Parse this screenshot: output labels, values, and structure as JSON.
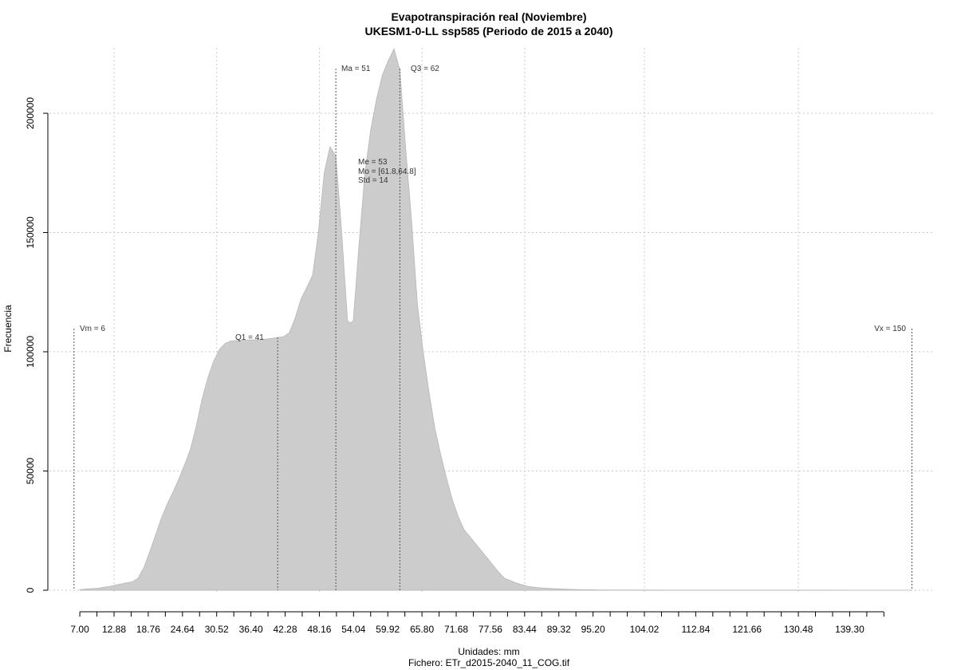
{
  "chart_data": {
    "type": "area",
    "title": "Evapotranspiración real (Noviembre)",
    "subtitle": "UKESM1-0-LL ssp585 (Periodo de 2015 a 2040)",
    "xlabel": "Unidades: mm",
    "ylabel": "Frecuencia",
    "footer": "Fichero: ETr_d2015-2040_11_COG.tif",
    "xlim": [
      6,
      150
    ],
    "ylim": [
      0,
      225000
    ],
    "grid": true,
    "fill_color": "#cccccc",
    "x_tick_labels": [
      "7.00",
      "12.88",
      "18.76",
      "24.64",
      "30.52",
      "36.40",
      "42.28",
      "48.16",
      "54.04",
      "59.92",
      "65.80",
      "71.68",
      "77.56",
      "83.44",
      "89.32",
      "95.20",
      "104.02",
      "112.84",
      "121.66",
      "130.48",
      "139.30"
    ],
    "y_tick_labels": [
      "0",
      "50000",
      "100000",
      "150000",
      "200000"
    ],
    "x": [
      7,
      8,
      10,
      12,
      14,
      16,
      17,
      18,
      19,
      20,
      21,
      22,
      23,
      24,
      25,
      26,
      27,
      28,
      29,
      30,
      31,
      32,
      33,
      34,
      35,
      36,
      37,
      38,
      39,
      40,
      41,
      42,
      43,
      44,
      45,
      46,
      47,
      48,
      49,
      50,
      50.5,
      51,
      52,
      53,
      53.5,
      54,
      55,
      56,
      57,
      58,
      59,
      60,
      61,
      62,
      63,
      64,
      65,
      66,
      67,
      68,
      69,
      70,
      71,
      72,
      73,
      74,
      75,
      76,
      77,
      78,
      79,
      80,
      82,
      84,
      86,
      88,
      90,
      92,
      94,
      96,
      98,
      100,
      110,
      120,
      130,
      140,
      150
    ],
    "y": [
      200,
      500,
      800,
      1500,
      2600,
      3500,
      5000,
      9500,
      16000,
      23000,
      30000,
      36000,
      41000,
      46500,
      52500,
      59000,
      68500,
      80000,
      89000,
      96000,
      101000,
      103500,
      104500,
      104700,
      104800,
      104900,
      105000,
      105100,
      105300,
      105600,
      106000,
      106300,
      108000,
      114000,
      122000,
      127000,
      132000,
      150000,
      175000,
      186000,
      184000,
      182000,
      150000,
      113000,
      112000,
      113000,
      145000,
      175000,
      193000,
      206000,
      216000,
      222000,
      227000,
      218000,
      185000,
      155000,
      120000,
      100000,
      83000,
      68000,
      57000,
      47000,
      38000,
      31000,
      25500,
      22500,
      19500,
      16500,
      13500,
      10500,
      7500,
      5000,
      3000,
      1600,
      1000,
      700,
      500,
      300,
      200,
      150,
      100,
      80,
      50,
      30,
      20,
      10,
      0
    ],
    "stats": {
      "vm": "Vm = 6",
      "q1": "Q1 = 41",
      "ma": "Ma = 51",
      "q3": "Q3 = 62",
      "vx": "Vx = 150",
      "me": "Me = 53",
      "mo": "Mo = [61.8,64.8]",
      "std": "Std = 14"
    },
    "stat_values": {
      "vm": 6,
      "q1": 41,
      "ma": 51,
      "q3": 62,
      "vx": 150
    }
  }
}
